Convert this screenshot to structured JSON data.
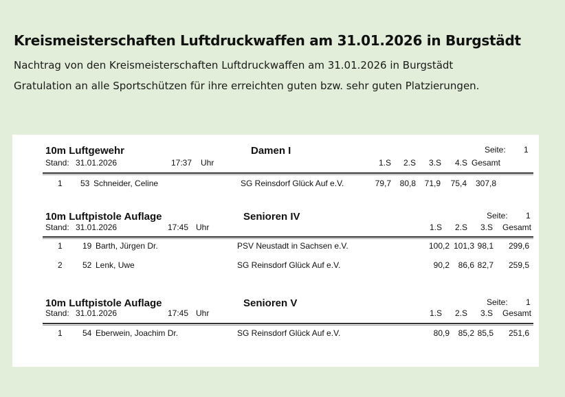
{
  "page": {
    "title": "Kreismeisterschaften Luftdruckwaffen am 31.01.2026 in Burgstädt",
    "lines": [
      "Nachtrag von den Kreismeisterschaften Luftdruckwaffen am 31.01.2026 in Burgstädt",
      "Gratulation an alle Sportschützen für ihre erreichten guten bzw. sehr guten Platzierungen."
    ]
  },
  "blocks": [
    {
      "discipline": "10m Luftgewehr",
      "class": "Damen I",
      "page_label": "Seite:",
      "page": "1",
      "stand_label": "Stand:",
      "date": "31.01.2026",
      "time": "17:37",
      "time_unit": "Uhr",
      "headers": [
        "1.S",
        "2.S",
        "3.S",
        "4.S",
        "Gesamt"
      ],
      "rows": [
        {
          "rank": "1",
          "start": "53",
          "name": "Schneider, Celine",
          "club": "SG Reinsdorf Glück Auf e.V.",
          "series": [
            "79,7",
            "80,8",
            "71,9",
            "75,4"
          ],
          "total": "307,8"
        }
      ]
    },
    {
      "discipline": "10m Luftpistole Auflage",
      "class": "Senioren IV",
      "page_label": "Seite:",
      "page": "1",
      "stand_label": "Stand:",
      "date": "31.01.2026",
      "time": "17:45",
      "time_unit": "Uhr",
      "headers": [
        "1.S",
        "2.S",
        "3.S",
        "Gesamt"
      ],
      "rows": [
        {
          "rank": "1",
          "start": "19",
          "name": "Barth, Jürgen Dr.",
          "club": "PSV Neustadt in Sachsen e.V.",
          "series": [
            "100,2",
            "101,3",
            "98,1"
          ],
          "total": "299,6"
        },
        {
          "rank": "2",
          "start": "52",
          "name": "Lenk, Uwe",
          "club": "SG Reinsdorf Glück Auf e.V.",
          "series": [
            "90,2",
            "86,6",
            "82,7"
          ],
          "total": "259,5"
        }
      ]
    },
    {
      "discipline": "10m Luftpistole Auflage",
      "class": "Senioren V",
      "page_label": "Seite:",
      "page": "1",
      "stand_label": "Stand:",
      "date": "31.01.2026",
      "time": "17:45",
      "time_unit": "Uhr",
      "headers": [
        "1.S",
        "2.S",
        "3.S",
        "Gesamt"
      ],
      "rows": [
        {
          "rank": "1",
          "start": "54",
          "name": "Eberwein, Joachim Dr.",
          "club": "SG Reinsdorf Glück Auf e.V.",
          "series": [
            "80,9",
            "85,2",
            "85,5"
          ],
          "total": "251,6"
        }
      ]
    }
  ]
}
